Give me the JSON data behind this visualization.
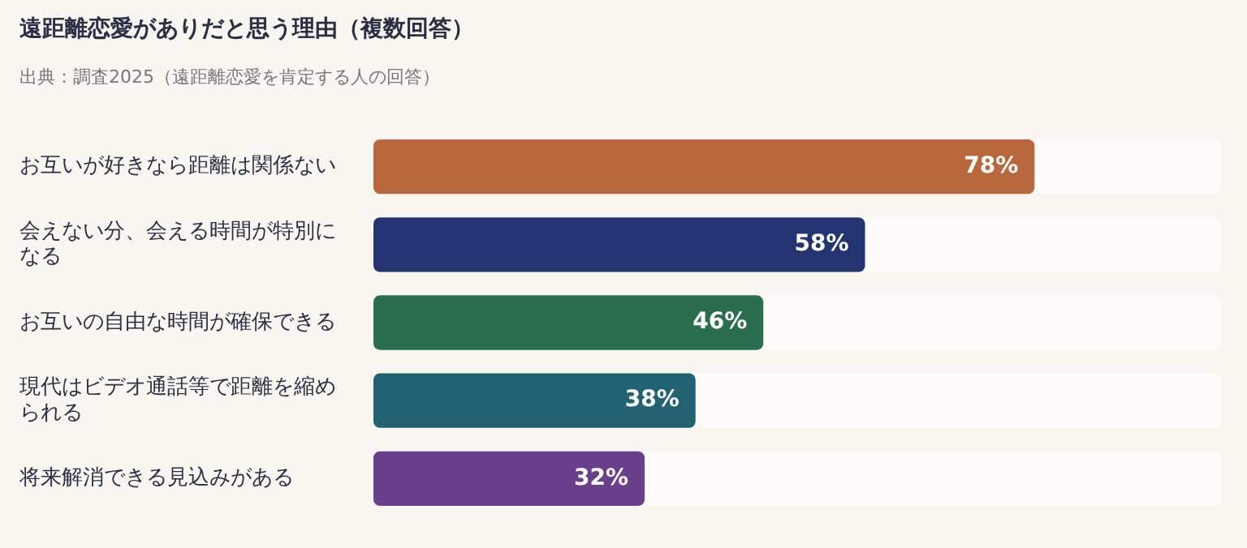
{
  "chart_data": {
    "type": "bar",
    "orientation": "horizontal",
    "title": "遠距離恋愛がありだと思う理由（複数回答）",
    "subtitle": "出典：調査2025（遠距離恋愛を肯定する人の回答）",
    "categories": [
      "お互いが好きなら距離は関係ない",
      "会えない分、会える時間が特別になる",
      "お互いの自由な時間が確保できる",
      "現代はビデオ通話等で距離を縮められる",
      "将来解消できる見込みがある"
    ],
    "values": [
      78,
      58,
      46,
      38,
      32
    ],
    "colors": [
      "#b8683c",
      "#233570",
      "#2a6e50",
      "#236272",
      "#6a3f8c"
    ],
    "value_labels": [
      "78%",
      "58%",
      "46%",
      "38%",
      "32%"
    ],
    "xlim": [
      0,
      100
    ],
    "grid": false,
    "legend": false,
    "tick_labels": "y"
  }
}
